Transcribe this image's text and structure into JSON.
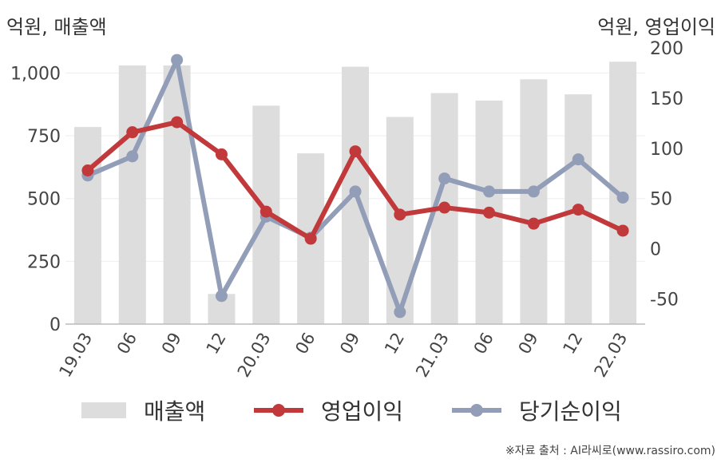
{
  "units": {
    "left": "억원, 매출액",
    "right": "억원, 영업이익"
  },
  "chart_data": {
    "type": "bar+line",
    "categories": [
      "19.03",
      "06",
      "09",
      "12",
      "20.03",
      "06",
      "09",
      "12",
      "21.03",
      "06",
      "09",
      "12",
      "22.03"
    ],
    "series": [
      {
        "name": "매출액",
        "kind": "bar",
        "axis": "left",
        "color": "#dddddd",
        "values": [
          785,
          1030,
          1030,
          120,
          870,
          680,
          1025,
          825,
          920,
          890,
          975,
          915,
          1045
        ]
      },
      {
        "name": "영업이익",
        "kind": "line",
        "axis": "right",
        "color": "#c1393a",
        "values": [
          78,
          116,
          126,
          94,
          37,
          10,
          97,
          34,
          41,
          36,
          25,
          39,
          18
        ]
      },
      {
        "name": "당기순이익",
        "kind": "line",
        "axis": "right",
        "color": "#929db7",
        "values": [
          73,
          92,
          188,
          -47,
          32,
          11,
          57,
          -63,
          70,
          57,
          57,
          89,
          51
        ]
      }
    ],
    "y_left": {
      "min": 0,
      "max": 1100,
      "ticks": [
        0,
        250,
        500,
        750,
        1000
      ],
      "tick_labels": [
        "0",
        "250",
        "500",
        "750",
        "1,000"
      ]
    },
    "y_right": {
      "min": -75,
      "max": 200,
      "ticks": [
        -50,
        0,
        50,
        100,
        150,
        200
      ],
      "tick_labels": [
        "-50",
        "0",
        "50",
        "100",
        "150",
        "200"
      ]
    },
    "grid": true,
    "legend_position": "bottom"
  },
  "legend": {
    "bar_label": "매출액",
    "line1_label": "영업이익",
    "line2_label": "당기순이익"
  },
  "source": "※자료 출처 : AI라씨로(www.rassiro.com)"
}
